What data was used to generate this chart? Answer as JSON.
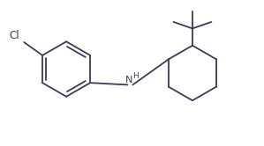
{
  "background_color": "#ffffff",
  "line_color": "#3a3a5c",
  "line_width": 1.3,
  "text_color": "#3a3a5c",
  "fig_width": 2.99,
  "fig_height": 1.66,
  "dpi": 100,
  "xlim": [
    0,
    10
  ],
  "ylim": [
    0,
    5.5
  ]
}
